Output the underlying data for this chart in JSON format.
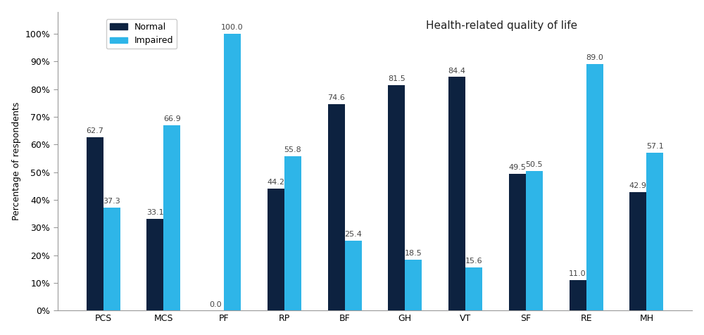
{
  "categories": [
    "PCS",
    "MCS",
    "PF",
    "RP",
    "BF",
    "GH",
    "VT",
    "SF",
    "RE",
    "MH"
  ],
  "normal": [
    62.7,
    33.1,
    0.0,
    44.2,
    74.6,
    81.5,
    84.4,
    49.5,
    11.0,
    42.9
  ],
  "impaired": [
    37.3,
    66.9,
    100.0,
    55.8,
    25.4,
    18.5,
    15.6,
    50.5,
    89.0,
    57.1
  ],
  "normal_color": "#0d2240",
  "impaired_color": "#2eb5e8",
  "title": "Health-related quality of life",
  "ylabel": "Percentage of respondents",
  "ylim": [
    0,
    108
  ],
  "yticks": [
    0,
    10,
    20,
    30,
    40,
    50,
    60,
    70,
    80,
    90,
    100
  ],
  "yticklabels": [
    "0%",
    "10%",
    "20%",
    "30%",
    "40%",
    "50%",
    "60%",
    "70%",
    "80%",
    "90%",
    "100%"
  ],
  "legend_labels": [
    "Normal",
    "Impaired"
  ],
  "bar_width": 0.28,
  "title_fontsize": 11,
  "label_fontsize": 9,
  "tick_fontsize": 9,
  "value_fontsize": 8
}
